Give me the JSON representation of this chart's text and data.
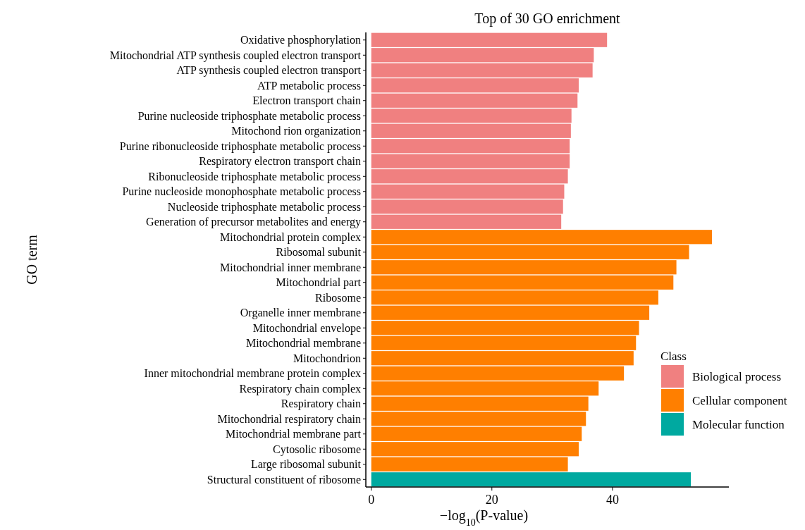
{
  "chart_data": {
    "type": "bar",
    "orientation": "horizontal",
    "title": "Top of 30 GO enrichment",
    "xlabel": "−log$_{10}$(P-value)",
    "ylabel": "GO term",
    "legend_title": "Class",
    "legend": "right",
    "categories": [
      "Oxidative phosphorylation",
      "Mitochondrial ATP synthesis coupled electron transport",
      "ATP synthesis coupled electron transport",
      "ATP metabolic process",
      "Electron transport chain",
      "Purine nucleoside triphosphate metabolic process",
      "Mitochond rion organization",
      "Purine ribonucleoside triphosphate metabolic process",
      "Respiratory electron transport chain",
      "Ribonucleoside triphosphate metabolic process",
      "Purine nucleoside monophosphate metabolic process",
      "Nucleoside triphosphate metabolic process",
      "Generation of precursor metabolites and energy",
      "Mitochondrial protein complex",
      "Ribosomal subunit",
      "Mitochondrial inner membrane",
      "Mitochondrial part",
      "Ribosome",
      "Organelle inner membrane",
      "Mitochondrial envelope",
      "Mitochondrial membrane",
      "Mitochondrion",
      "Inner mitochondrial membrane protein complex",
      "Respiratory chain complex",
      "Respiratory chain",
      "Mitochondrial respiratory chain",
      "Mitochondrial membrane part",
      "Cytosolic ribosome",
      "Large ribosomal subunit",
      "Structural constituent of ribosome"
    ],
    "series": [
      {
        "name": "Biological process",
        "color": "#f08080",
        "values": [
          39.1,
          36.9,
          36.7,
          34.4,
          34.2,
          33.2,
          33.1,
          32.9,
          32.9,
          32.6,
          32.0,
          31.8,
          31.5,
          null,
          null,
          null,
          null,
          null,
          null,
          null,
          null,
          null,
          null,
          null,
          null,
          null,
          null,
          null,
          null,
          null
        ]
      },
      {
        "name": "Cellular component",
        "color": "#ff7f00",
        "values": [
          null,
          null,
          null,
          null,
          null,
          null,
          null,
          null,
          null,
          null,
          null,
          null,
          null,
          56.5,
          52.7,
          50.6,
          50.1,
          47.6,
          46.1,
          44.4,
          43.9,
          43.5,
          41.9,
          37.7,
          36.0,
          35.6,
          34.9,
          34.4,
          32.6,
          null
        ]
      },
      {
        "name": "Molecular function",
        "color": "#00a9a0",
        "values": [
          null,
          null,
          null,
          null,
          null,
          null,
          null,
          null,
          null,
          null,
          null,
          null,
          null,
          null,
          null,
          null,
          null,
          null,
          null,
          null,
          null,
          null,
          null,
          null,
          null,
          null,
          null,
          null,
          null,
          53.0
        ]
      }
    ],
    "xlim": [
      -0.9,
      59.3
    ],
    "xticks": [
      0,
      20,
      40
    ],
    "grid": false
  }
}
